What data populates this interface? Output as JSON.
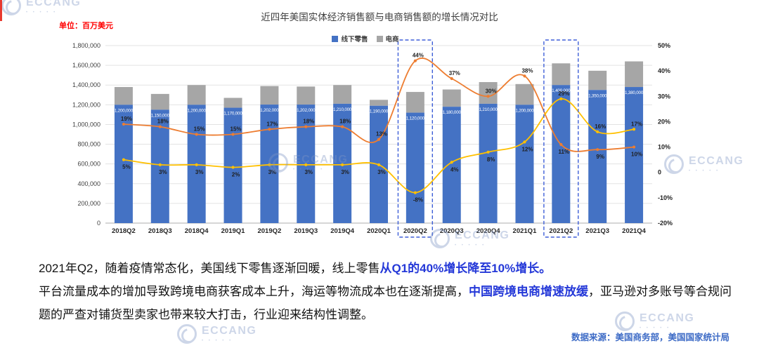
{
  "page": {
    "unit_label": "单位：百万美元",
    "source_note": "数据来源：美国商务部，美国国家统计局",
    "watermark": {
      "brand": "ECCANG",
      "dots": "• • • • •"
    }
  },
  "chart_data": {
    "type": "bar",
    "title": "近四年美国实体经济销售额与电商销售额的增长情况对比",
    "categories": [
      "2018Q2",
      "2018Q3",
      "2018Q4",
      "2019Q1",
      "2019Q2",
      "2019Q3",
      "2019Q4",
      "2020Q1",
      "2020Q2",
      "2020Q3",
      "2020Q4",
      "2021Q1",
      "2021Q2",
      "2021Q3",
      "2021Q4"
    ],
    "series": [
      {
        "name": "线下零售",
        "kind": "bar",
        "color": "#4472C4",
        "values": [
          1200000,
          1150000,
          1200000,
          1170000,
          1202000,
          1202000,
          1210000,
          1190000,
          1120000,
          1180000,
          1210000,
          1200000,
          1400000,
          1350000,
          1380000
        ],
        "labels": [
          "1,200,000",
          "1,150,000",
          "1,200,000",
          "1,170,000",
          "1,202,000",
          "1,202,000",
          "1,210,000",
          "1,190,000",
          "1,120,000",
          "1,180,000",
          "1,210,000",
          "1,200,000",
          "1,400,000",
          "1,350,000",
          "1,380,000"
        ]
      },
      {
        "name": "电商",
        "kind": "bar",
        "color": "#A6A6A6",
        "values": [
          180000,
          160000,
          200000,
          100000,
          188000,
          183000,
          190000,
          60000,
          210000,
          175000,
          220000,
          210000,
          220000,
          195000,
          260000
        ]
      },
      {
        "name": "ecommerce-growth-line",
        "kind": "line",
        "color": "#ED7D31",
        "values": [
          19,
          18,
          15,
          15,
          17,
          18,
          18,
          13,
          44,
          37,
          30,
          38,
          11,
          9,
          10
        ],
        "labels": [
          "19%",
          "18%",
          "15%",
          "15%",
          "17%",
          "18%",
          "18%",
          "13%",
          "44%",
          "37%",
          "30%",
          "38%",
          "11%",
          "9%",
          "10%"
        ]
      },
      {
        "name": "offline-growth-line",
        "kind": "line",
        "color": "#FFC000",
        "values": [
          5,
          3,
          3,
          2,
          3,
          3,
          3,
          3,
          -8,
          4,
          8,
          12,
          29,
          16,
          17
        ],
        "labels": [
          "5%",
          "3%",
          "3%",
          "2%",
          "3%",
          "3%",
          "3%",
          "3%",
          "-8%",
          "4%",
          "8%",
          "12%",
          "29%",
          "16%",
          "17%"
        ]
      }
    ],
    "left_axis": {
      "min": 0,
      "max": 1800000,
      "step": 200000,
      "tick_labels": [
        "1,800,000",
        "1,600,000",
        "1,400,000",
        "1,200,000",
        "1,000,000",
        "800,000",
        "600,000",
        "400,000",
        "200,000",
        "0"
      ]
    },
    "right_axis": {
      "min": -20,
      "max": 50,
      "step": 10,
      "tick_labels": [
        "50%",
        "40%",
        "30%",
        "20%",
        "10%",
        "0",
        "-10%",
        "-20%"
      ]
    },
    "legend": [
      {
        "label": "线下零售",
        "color": "#4472C4"
      },
      {
        "label": "电商",
        "color": "#A6A6A6"
      }
    ],
    "highlights": [
      "2020Q2",
      "2021Q2"
    ],
    "highlight_color": "#3E5FD8",
    "grid": true,
    "legend_position": "top-center"
  },
  "commentary": {
    "p1_normal": "2021年Q2，随着疫情常态化，美国线下零售逐渐回暖，线上零售",
    "p1_highlight": "从Q1的40%增长降至10%增长。",
    "p2_part1": "平台流量成本的增加导致跨境电商获客成本上升，海运等物流成本也在逐渐提高，",
    "p2_highlight": "中国跨境电商增速放缓",
    "p2_part2": "，亚马逊对多账号等合规问题的严查对铺货型卖家也带来较大打击，行业迎来结构性调整。"
  }
}
